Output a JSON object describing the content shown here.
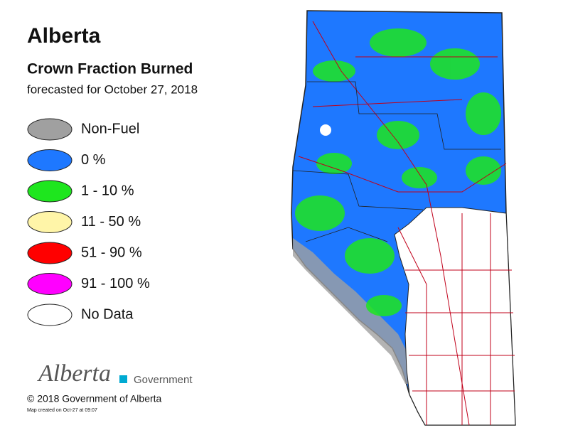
{
  "header": {
    "title": "Alberta",
    "subtitle": "Crown Fraction Burned",
    "forecast": "forecasted for October 27, 2018"
  },
  "legend": {
    "items": [
      {
        "label": "Non-Fuel",
        "color": "#a0a0a0"
      },
      {
        "label": "0 %",
        "color": "#1e78ff"
      },
      {
        "label": "1 - 10 %",
        "color": "#1ee61e"
      },
      {
        "label": "11 - 50 %",
        "color": "#fff5a8"
      },
      {
        "label": "51 - 90 %",
        "color": "#ff0000"
      },
      {
        "label": "91 - 100 %",
        "color": "#ff00ff"
      },
      {
        "label": "No Data",
        "color": "#ffffff"
      }
    ]
  },
  "footer": {
    "logo_word": "Alberta",
    "logo_government": "Government",
    "copyright": "© 2018 Government of Alberta",
    "created": "Map created on Oct-27 at 09:07"
  }
}
